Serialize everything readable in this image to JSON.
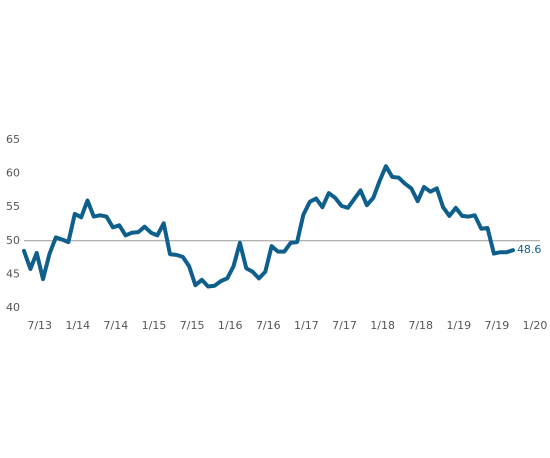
{
  "chart_data": {
    "type": "line",
    "categories": [
      null,
      null,
      "7/13",
      null,
      null,
      null,
      null,
      null,
      "1/14",
      null,
      null,
      null,
      null,
      null,
      "7/14",
      null,
      null,
      null,
      null,
      null,
      "1/15",
      null,
      null,
      null,
      null,
      null,
      "7/15",
      null,
      null,
      null,
      null,
      null,
      "1/16",
      null,
      null,
      null,
      null,
      null,
      "7/16",
      null,
      null,
      null,
      null,
      null,
      "1/17",
      null,
      null,
      null,
      null,
      null,
      "7/17",
      null,
      null,
      null,
      null,
      null,
      "1/18",
      null,
      null,
      null,
      null,
      null,
      "7/18",
      null,
      null,
      null,
      null,
      null,
      "1/19",
      null,
      null,
      null,
      null,
      null,
      "7/19",
      null,
      null,
      null,
      null,
      null,
      "1/20"
    ],
    "series": [
      {
        "color": "#0f5f8c",
        "values": [
          48.5,
          45.8,
          48.2,
          44.3,
          48,
          50.5,
          50.2,
          49.8,
          54,
          53.5,
          56,
          53.6,
          53.8,
          53.6,
          52,
          52.3,
          50.8,
          51.2,
          51.3,
          52.1,
          51.2,
          50.8,
          52.6,
          48,
          47.9,
          47.6,
          46.2,
          43.4,
          44.2,
          43.2,
          43.3,
          44,
          44.4,
          46.2,
          49.7,
          45.9,
          45.4,
          44.4,
          45.4,
          49.2,
          48.4,
          48.4,
          49.7,
          49.8,
          53.9,
          55.8,
          56.3,
          55,
          57.1,
          56.4,
          55.2,
          54.9,
          56.2,
          57.5,
          55.3,
          56.4,
          58.9,
          61.1,
          59.5,
          59.4,
          58.5,
          57.8,
          55.9,
          58,
          57.3,
          57.8,
          55,
          53.7,
          54.9,
          53.7,
          53.6,
          53.8,
          51.8,
          51.9,
          48.1,
          48.3,
          48.3,
          48.6,
          null,
          null,
          null
        ]
      }
    ],
    "ylim": [
      40,
      65
    ],
    "yticks": [
      40,
      45,
      50,
      55,
      60,
      65
    ],
    "reference_line": 50,
    "reference_color": "#999999"
  }
}
